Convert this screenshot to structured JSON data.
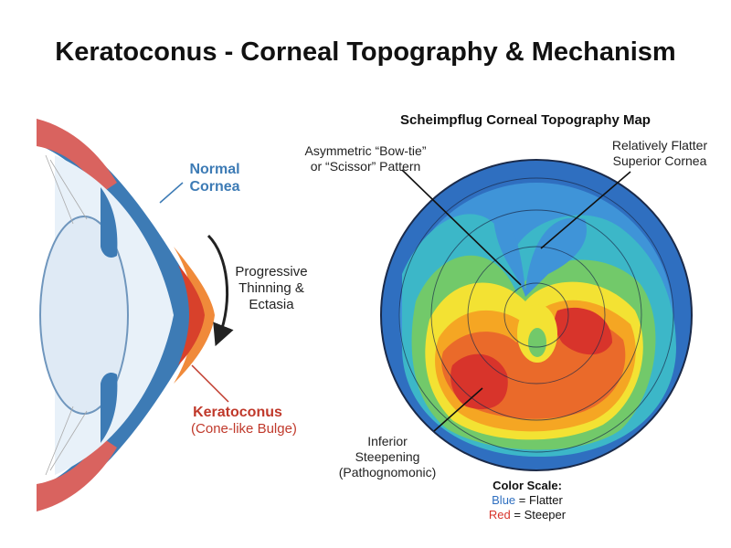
{
  "title": "Keratoconus - Corneal Topography & Mechanism",
  "eye": {
    "normal_label": [
      "Normal",
      "Cornea"
    ],
    "arrow_label": [
      "Progressive",
      "Thinning &",
      "Ectasia"
    ],
    "keratoconus_label": "Keratoconus",
    "keratoconus_sub": "(Cone-like Bulge)"
  },
  "map": {
    "title": "Scheimpflug Corneal Topography Map",
    "bowtie_label": [
      "Asymmetric “Bow-tie”",
      "or “Scissor” Pattern"
    ],
    "flatter_label": [
      "Relatively Flatter",
      "Superior Cornea"
    ],
    "inferior_label": [
      "Inferior",
      "Steepening",
      "(Pathognomonic)"
    ],
    "scale": {
      "title": "Color Scale:",
      "blue": "Blue",
      "blue_desc": "= Flatter",
      "red": "Red",
      "red_desc": "= Steeper"
    }
  }
}
